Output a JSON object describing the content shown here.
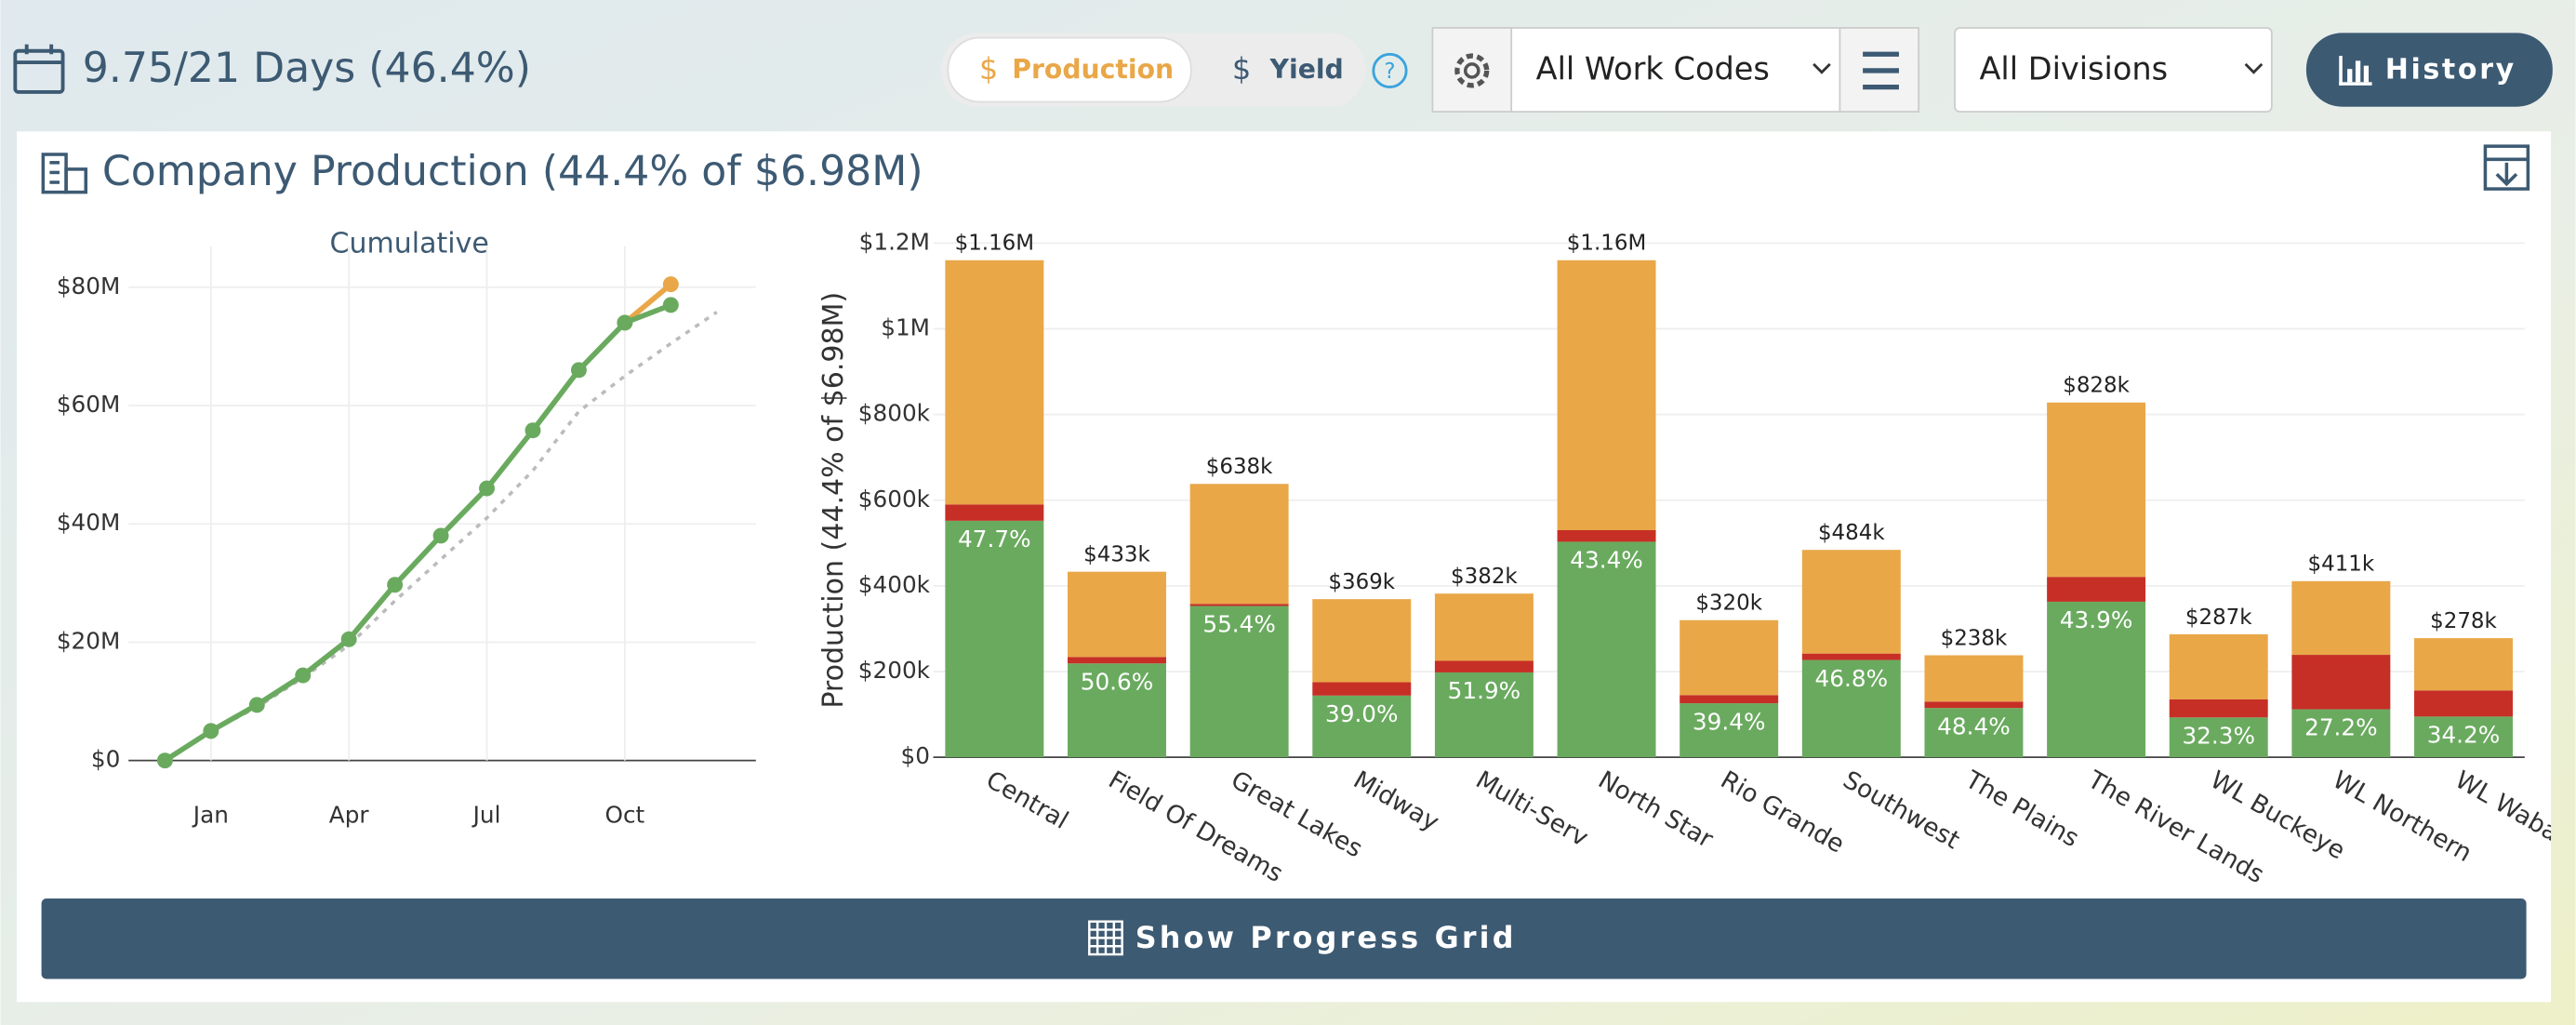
{
  "header": {
    "days": "9.75/21 Days (46.4%)",
    "toggle": [
      "Production",
      "Yield"
    ],
    "help": "?",
    "work_codes": "All Work Codes",
    "divisions": "All Divisions",
    "history": "History"
  },
  "card": {
    "title": "Company Production (44.4% of $6.98M)",
    "button": "Show Progress Grid"
  },
  "chart_data": [
    {
      "type": "line",
      "title": "Cumulative",
      "xlim": [
        -0.9,
        12.85
      ],
      "xticks": [
        {
          "value": 1,
          "label": "Jan"
        },
        {
          "value": 4,
          "label": "Apr"
        },
        {
          "value": 7,
          "label": "Jul"
        },
        {
          "value": 10,
          "label": "Oct"
        }
      ],
      "ylim": [
        0,
        86.9
      ],
      "yticks": [
        {
          "value": 0,
          "label": "$0"
        },
        {
          "value": 20,
          "label": "$20M"
        },
        {
          "value": 40,
          "label": "$40M"
        },
        {
          "value": 60,
          "label": "$60M"
        },
        {
          "value": 80,
          "label": "$80M"
        }
      ],
      "grid": true,
      "series": [
        {
          "color": "#bbbbbb",
          "dashed": true,
          "markers": false,
          "x": [
            0,
            1,
            2,
            3,
            4,
            5,
            6,
            7,
            8,
            9,
            10,
            11,
            12
          ],
          "values": [
            0,
            5,
            9,
            14,
            19.5,
            27,
            34,
            41,
            49,
            59,
            65,
            70.5,
            75.8
          ]
        },
        {
          "color": "#e9a748",
          "dashed": false,
          "markers": true,
          "x": [
            10,
            11
          ],
          "values": [
            74,
            80.5
          ]
        },
        {
          "color": "#6aaa5f",
          "dashed": false,
          "markers": true,
          "x": [
            0,
            1,
            2,
            3,
            4,
            5,
            6,
            7,
            8,
            9,
            10,
            11
          ],
          "values": [
            0,
            5,
            9.4,
            14.4,
            20.5,
            29.7,
            38,
            46,
            55.8,
            66,
            74,
            77
          ]
        }
      ]
    },
    {
      "type": "bar",
      "stacked": true,
      "y_label": "Production (44.4% of $6.98M)",
      "categories": [
        "Central",
        "Field Of Dreams",
        "Great Lakes",
        "Midway",
        "Multi-Serv",
        "North Star",
        "Rio Grande",
        "Southwest",
        "The Plains",
        "The River Lands",
        "WL Buckeye",
        "WL Northern",
        "WL Waba"
      ],
      "series": [
        {
          "color": "#6aaa5f",
          "values": [
            552000,
            219000,
            353000,
            144000,
            198000,
            503000,
            126000,
            227000,
            115000,
            363000,
            93000,
            112000,
            95000
          ]
        },
        {
          "color": "#c62f26",
          "values": [
            38000,
            15000,
            5000,
            31000,
            27000,
            27000,
            19000,
            15000,
            15000,
            58000,
            42000,
            127000,
            61000
          ]
        },
        {
          "color": "#e9a748",
          "values": [
            570000,
            199000,
            280000,
            194000,
            157000,
            630000,
            175000,
            242000,
            108000,
            407000,
            152000,
            172000,
            122000
          ]
        }
      ],
      "share_labels": [
        "47.7%",
        "50.6%",
        "55.4%",
        "39.0%",
        "51.9%",
        "43.4%",
        "39.4%",
        "46.8%",
        "48.4%",
        "43.9%",
        "32.3%",
        "27.2%",
        "34.2%"
      ],
      "total_labels": [
        "$1.16M",
        "$433k",
        "$638k",
        "$369k",
        "$382k",
        "$1.16M",
        "$320k",
        "$484k",
        "$238k",
        "$828k",
        "$287k",
        "$411k",
        "$278k"
      ],
      "ylim": [
        0,
        1200000
      ],
      "yticks": [
        {
          "value": 0,
          "label": "$0"
        },
        {
          "value": 200000,
          "label": "$200k"
        },
        {
          "value": 400000,
          "label": "$400k"
        },
        {
          "value": 600000,
          "label": "$600k"
        },
        {
          "value": 800000,
          "label": "$800k"
        },
        {
          "value": 1000000,
          "label": "$1M"
        },
        {
          "value": 1200000,
          "label": "$1.2M"
        }
      ],
      "grid": true
    }
  ]
}
